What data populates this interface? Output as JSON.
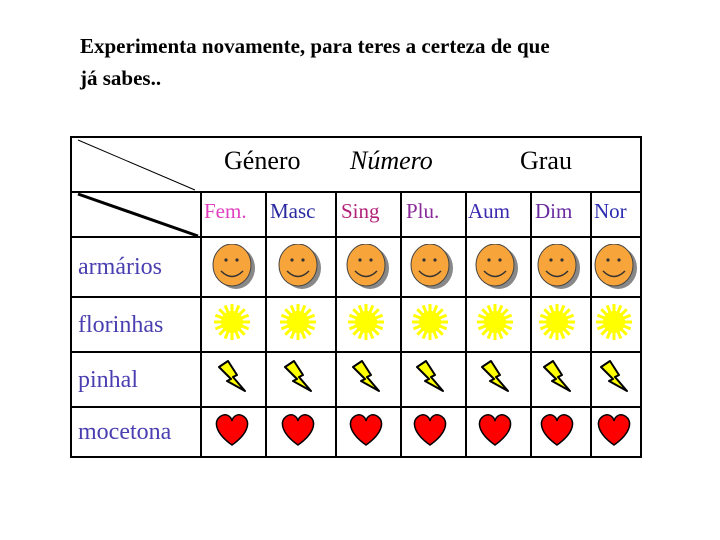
{
  "intro": {
    "line1": "Experimenta novamente, para teres a certeza de que",
    "line2": "já sabes.."
  },
  "table": {
    "headers": {
      "genero": "Género",
      "numero": "Número",
      "grau": "Grau"
    },
    "subheaders": [
      {
        "label": "Fem.",
        "color": "#e040c0"
      },
      {
        "label": "Masc",
        "color": "#2a2aa0"
      },
      {
        "label": "Sing",
        "color": "#b2227a"
      },
      {
        "label": "Plu.",
        "color": "#8a2a9a"
      },
      {
        "label": "Aum",
        "color": "#3a2ab0"
      },
      {
        "label": "Dim",
        "color": "#6a2aa0"
      },
      {
        "label": "Nor",
        "color": "#2a2ab0"
      }
    ],
    "rows": [
      {
        "label": "armários",
        "icon": "smiley-face-icon"
      },
      {
        "label": "florinhas",
        "icon": "sun-icon"
      },
      {
        "label": "pinhal",
        "icon": "lightning-bolt-icon"
      },
      {
        "label": "mocetona",
        "icon": "heart-icon"
      }
    ]
  },
  "colors": {
    "smiley": "#f7a43b",
    "sun": "#ffff00",
    "bolt": "#ffff00",
    "heart": "#ff0000",
    "row_label": "#4a3fb0"
  }
}
